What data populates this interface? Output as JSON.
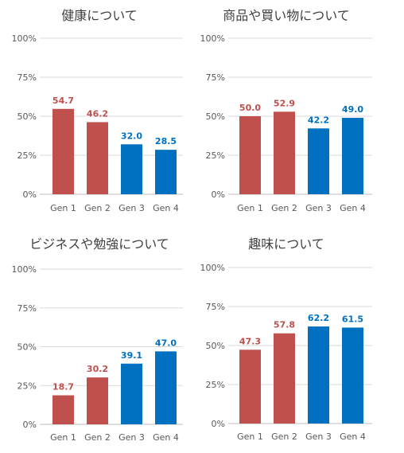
{
  "chart_data": [
    {
      "type": "bar",
      "title": "健康について",
      "categories": [
        "Gen 1",
        "Gen 2",
        "Gen 3",
        "Gen 4"
      ],
      "values": [
        54.7,
        46.2,
        32.0,
        28.5
      ],
      "value_labels": [
        "54.7",
        "46.2",
        "32.0",
        "28.5"
      ],
      "bar_colors": [
        "#c0504d",
        "#c0504d",
        "#0070c0",
        "#0070c0"
      ],
      "yticks": [
        "0%",
        "25%",
        "50%",
        "75%",
        "100%"
      ],
      "ylim": [
        0,
        100
      ],
      "grid": true
    },
    {
      "type": "bar",
      "title": "商品や買い物について",
      "categories": [
        "Gen 1",
        "Gen 2",
        "Gen 3",
        "Gen 4"
      ],
      "values": [
        50.0,
        52.9,
        42.2,
        49.0
      ],
      "value_labels": [
        "50.0",
        "52.9",
        "42.2",
        "49.0"
      ],
      "bar_colors": [
        "#c0504d",
        "#c0504d",
        "#0070c0",
        "#0070c0"
      ],
      "yticks": [
        "0%",
        "25%",
        "50%",
        "75%",
        "100%"
      ],
      "ylim": [
        0,
        100
      ],
      "grid": true
    },
    {
      "type": "bar",
      "title": "ビジネスや勉強について",
      "categories": [
        "Gen 1",
        "Gen 2",
        "Gen 3",
        "Gen 4"
      ],
      "values": [
        18.7,
        30.2,
        39.1,
        47.0
      ],
      "value_labels": [
        "18.7",
        "30.2",
        "39.1",
        "47.0"
      ],
      "bar_colors": [
        "#c0504d",
        "#c0504d",
        "#0070c0",
        "#0070c0"
      ],
      "yticks": [
        "0%",
        "25%",
        "50%",
        "75%",
        "100%"
      ],
      "ylim": [
        0,
        100
      ],
      "grid": true
    },
    {
      "type": "bar",
      "title": "趣味について",
      "categories": [
        "Gen 1",
        "Gen 2",
        "Gen 3",
        "Gen 4"
      ],
      "values": [
        47.3,
        57.8,
        62.2,
        61.5
      ],
      "value_labels": [
        "47.3",
        "57.8",
        "62.2",
        "61.5"
      ],
      "bar_colors": [
        "#c0504d",
        "#c0504d",
        "#0070c0",
        "#0070c0"
      ],
      "yticks": [
        "0%",
        "25%",
        "50%",
        "75%",
        "100%"
      ],
      "ylim": [
        0,
        100
      ],
      "grid": true
    }
  ]
}
